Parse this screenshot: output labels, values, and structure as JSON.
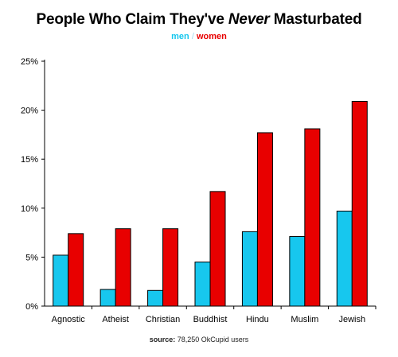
{
  "chart_data": {
    "type": "bar",
    "title_prefix": "People Who Claim They've ",
    "title_emphasis": "Never",
    "title_suffix": " Masturbated",
    "categories": [
      "Agnostic",
      "Atheist",
      "Christian",
      "Buddhist",
      "Hindu",
      "Muslim",
      "Jewish"
    ],
    "series": [
      {
        "name": "men",
        "color": "#17c7ee",
        "values": [
          5.2,
          1.7,
          1.6,
          4.5,
          7.6,
          7.1,
          9.7
        ]
      },
      {
        "name": "women",
        "color": "#e80000",
        "values": [
          7.4,
          7.9,
          7.9,
          11.7,
          17.7,
          18.1,
          20.9
        ]
      }
    ],
    "legend_separator": "/",
    "ylim": [
      0,
      25
    ],
    "yticks": [
      "0%",
      "5%",
      "10%",
      "15%",
      "20%",
      "25%"
    ],
    "ytick_values": [
      0,
      5,
      10,
      15,
      20,
      25
    ],
    "grid": false,
    "xlabel": "",
    "ylabel": ""
  },
  "source": {
    "label": "source:",
    "text": " 78,250 OkCupid users"
  }
}
